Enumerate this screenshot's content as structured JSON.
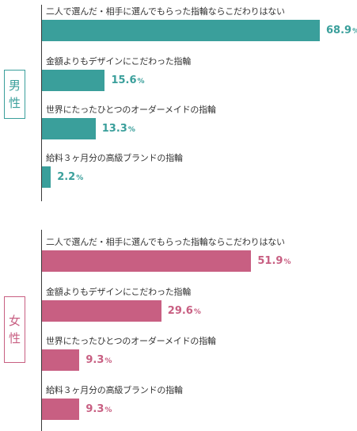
{
  "colors": {
    "male": "#3a9f9b",
    "female": "#c85f82"
  },
  "chart_data": [
    {
      "type": "bar",
      "group": "男性",
      "group_label_chars": [
        "男",
        "性"
      ],
      "categories": [
        "二人で選んだ・相手に選んでもらった指輪ならこだわりはない",
        "金額よりもデザインにこだわった指輪",
        "世界にたったひとつのオーダーメイドの指輪",
        "給料３ヶ月分の高級ブランドの指輪"
      ],
      "values": [
        68.9,
        15.6,
        13.3,
        2.2
      ],
      "value_labels": [
        "68.9",
        "15.6",
        "13.3",
        "2.2"
      ],
      "unit": "%"
    },
    {
      "type": "bar",
      "group": "女性",
      "group_label_chars": [
        "女",
        "性"
      ],
      "categories": [
        "二人で選んだ・相手に選んでもらった指輪ならこだわりはない",
        "金額よりもデザインにこだわった指輪",
        "世界にたったひとつのオーダーメイドの指輪",
        "給料３ヶ月分の高級ブランドの指輪"
      ],
      "values": [
        51.9,
        29.6,
        9.3,
        9.3
      ],
      "value_labels": [
        "51.9",
        "29.6",
        "9.3",
        "9.3"
      ],
      "unit": "%"
    }
  ]
}
